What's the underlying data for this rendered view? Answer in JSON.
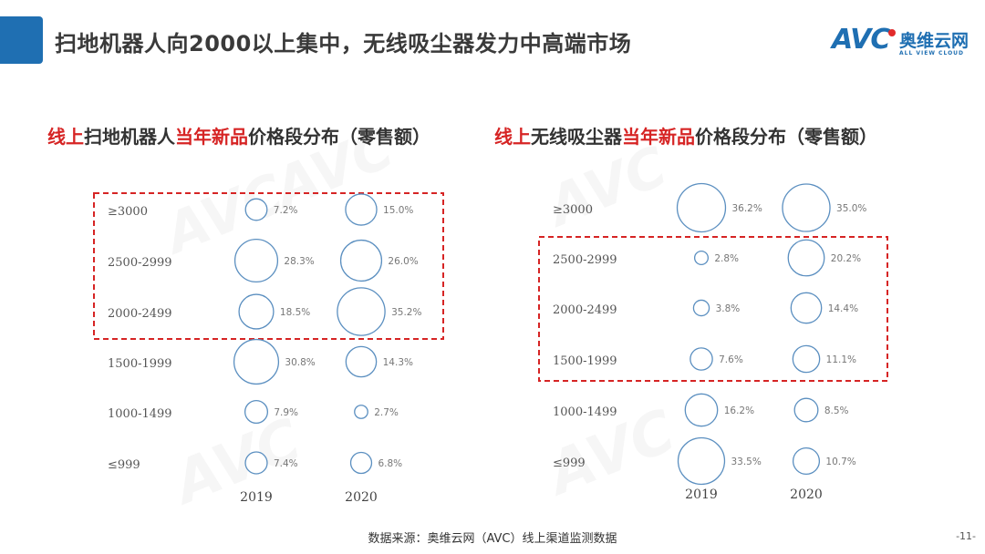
{
  "header": {
    "title": "扫地机器人向2000以上集中，无线吸尘器发力中高端市场",
    "logo": {
      "mark": "AVC",
      "name_cn": "奥维云网",
      "name_en": "ALL VIEW CLOUD"
    }
  },
  "colors": {
    "accent_blue": "#1f6fb2",
    "highlight_red": "#d62424",
    "bubble_stroke": "#5b8fc0",
    "dashed_box": "#d62424"
  },
  "chart_data": [
    {
      "type": "bubble",
      "title_parts": [
        {
          "text": "线上",
          "highlight": true
        },
        {
          "text": "扫地机器人",
          "highlight": false
        },
        {
          "text": "当年新品",
          "highlight": true
        },
        {
          "text": "价格段分布（零售额）",
          "highlight": false
        }
      ],
      "categories": [
        "≥3000",
        "2500-2999",
        "2000-2499",
        "1500-1999",
        "1000-1499",
        "≤999"
      ],
      "years": [
        "2019",
        "2020"
      ],
      "series": [
        {
          "name": "2019",
          "values": [
            7.2,
            28.3,
            18.5,
            30.8,
            7.9,
            7.4
          ],
          "labels": [
            "7.2%",
            "28.3%",
            "18.5%",
            "30.8%",
            "7.9%",
            "7.4%"
          ]
        },
        {
          "name": "2020",
          "values": [
            15.0,
            26.0,
            35.2,
            14.3,
            2.7,
            6.8
          ],
          "labels": [
            "15.0%",
            "26.0%",
            "35.2%",
            "14.3%",
            "2.7%",
            "6.8%"
          ]
        }
      ],
      "unit": "%",
      "highlight_categories": [
        "≥3000",
        "2500-2999",
        "2000-2499"
      ]
    },
    {
      "type": "bubble",
      "title_parts": [
        {
          "text": "线上",
          "highlight": true
        },
        {
          "text": "无线吸尘器",
          "highlight": false
        },
        {
          "text": "当年新品",
          "highlight": true
        },
        {
          "text": "价格段分布（零售额）",
          "highlight": false
        }
      ],
      "categories": [
        "≥3000",
        "2500-2999",
        "2000-2499",
        "1500-1999",
        "1000-1499",
        "≤999"
      ],
      "years": [
        "2019",
        "2020"
      ],
      "series": [
        {
          "name": "2019",
          "values": [
            36.2,
            2.8,
            3.8,
            7.6,
            16.2,
            33.5
          ],
          "labels": [
            "36.2%",
            "2.8%",
            "3.8%",
            "7.6%",
            "16.2%",
            "33.5%"
          ]
        },
        {
          "name": "2020",
          "values": [
            35.0,
            20.2,
            14.4,
            11.1,
            8.5,
            10.7
          ],
          "labels": [
            "35.0%",
            "20.2%",
            "14.4%",
            "11.1%",
            "8.5%",
            "10.7%"
          ]
        }
      ],
      "unit": "%",
      "highlight_categories": [
        "2500-2999",
        "2000-2499",
        "1500-1999"
      ]
    }
  ],
  "footer": {
    "source": "数据来源：奥维云网（AVC）线上渠道监测数据",
    "page": "-11-"
  }
}
